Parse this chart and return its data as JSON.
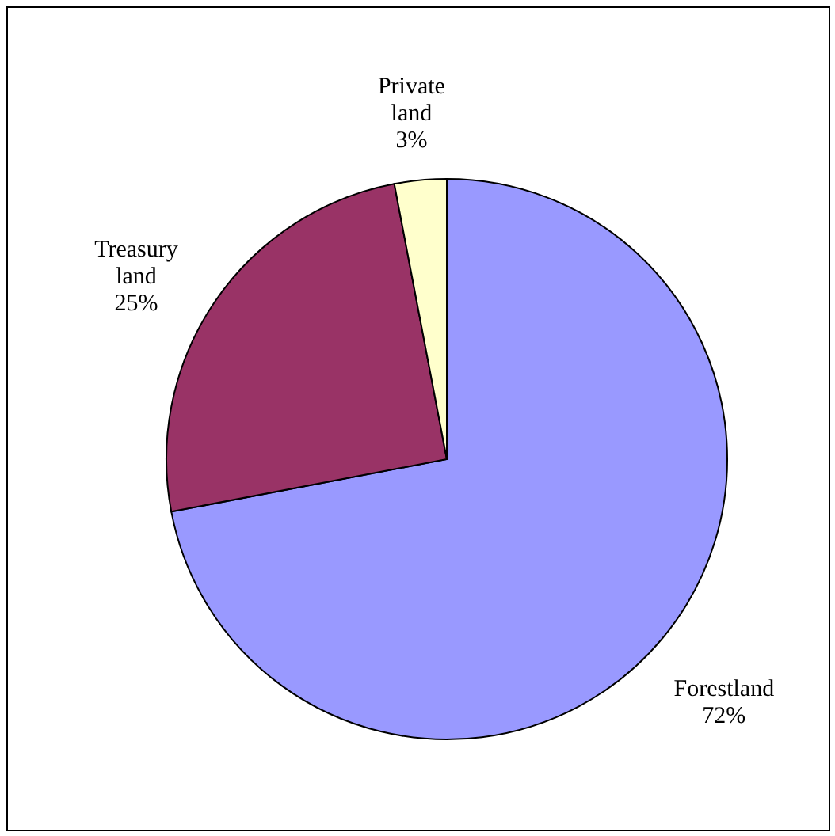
{
  "chart_data": {
    "type": "pie",
    "categories": [
      "Forestland",
      "Treasury land",
      "Private land"
    ],
    "values": [
      72,
      25,
      3
    ],
    "colors": [
      "#9999ff",
      "#993366",
      "#ffffcc"
    ],
    "value_labels": [
      "72%",
      "25%",
      "3%"
    ],
    "legend": false
  }
}
